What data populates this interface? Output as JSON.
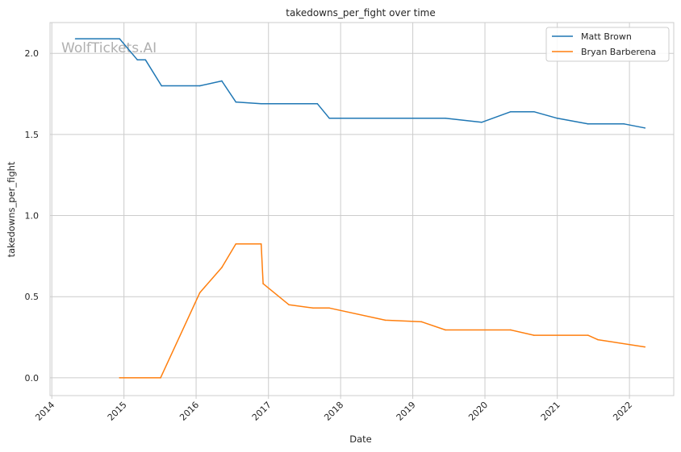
{
  "chart_data": {
    "type": "line",
    "title": "takedowns_per_fight over time",
    "xlabel": "Date",
    "ylabel": "takedowns_per_fight",
    "watermark": "WolfTickets.AI",
    "xlim": [
      "2013-12-23",
      "2022-08-13"
    ],
    "ylim": [
      -0.11,
      2.19
    ],
    "grid": true,
    "legend_position": "top-right",
    "x_ticks": [
      "2014",
      "2015",
      "2016",
      "2017",
      "2018",
      "2019",
      "2020",
      "2021",
      "2022"
    ],
    "y_ticks": [
      "0.0",
      "0.5",
      "1.0",
      "1.5",
      "2.0"
    ],
    "colors": {
      "Matt Brown": "#1f77b4",
      "Bryan Barberena": "#ff7f0e"
    },
    "series": [
      {
        "name": "Matt Brown",
        "points": [
          [
            "2014-05-01",
            2.09
          ],
          [
            "2014-12-10",
            2.09
          ],
          [
            "2015-03-10",
            1.96
          ],
          [
            "2015-04-20",
            1.96
          ],
          [
            "2015-07-10",
            1.8
          ],
          [
            "2016-01-20",
            1.8
          ],
          [
            "2016-05-10",
            1.83
          ],
          [
            "2016-07-20",
            1.7
          ],
          [
            "2016-11-25",
            1.69
          ],
          [
            "2017-09-05",
            1.69
          ],
          [
            "2017-11-05",
            1.6
          ],
          [
            "2019-06-15",
            1.6
          ],
          [
            "2019-12-15",
            1.575
          ],
          [
            "2020-05-10",
            1.64
          ],
          [
            "2020-09-05",
            1.64
          ],
          [
            "2021-01-01",
            1.6
          ],
          [
            "2021-06-05",
            1.565
          ],
          [
            "2021-12-05",
            1.565
          ],
          [
            "2022-03-20",
            1.54
          ]
        ]
      },
      {
        "name": "Bryan Barberena",
        "points": [
          [
            "2014-12-10",
            0.0
          ],
          [
            "2015-07-05",
            0.0
          ],
          [
            "2016-01-20",
            0.525
          ],
          [
            "2016-05-10",
            0.68
          ],
          [
            "2016-07-20",
            0.825
          ],
          [
            "2016-11-25",
            0.825
          ],
          [
            "2016-12-05",
            0.58
          ],
          [
            "2017-04-15",
            0.45
          ],
          [
            "2017-08-15",
            0.43
          ],
          [
            "2017-11-05",
            0.43
          ],
          [
            "2018-08-15",
            0.355
          ],
          [
            "2019-02-15",
            0.345
          ],
          [
            "2019-06-15",
            0.295
          ],
          [
            "2020-05-10",
            0.295
          ],
          [
            "2020-09-05",
            0.262
          ],
          [
            "2021-06-05",
            0.262
          ],
          [
            "2021-07-25",
            0.235
          ],
          [
            "2022-03-20",
            0.19
          ]
        ]
      }
    ]
  }
}
